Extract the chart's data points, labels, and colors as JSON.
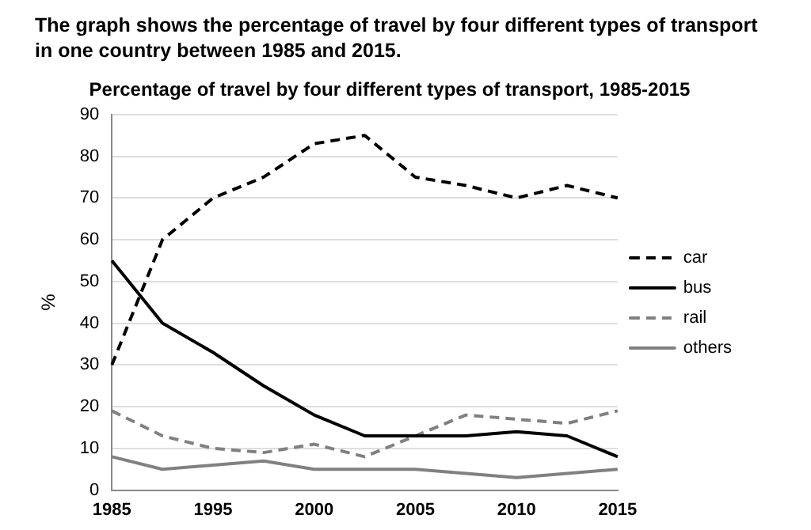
{
  "chart_data": {
    "type": "line",
    "title": "The graph shows the percentage of travel by four different types of transport in one country between 1985 and 2015.",
    "subtitle": "Percentage of travel by four different types of transport, 1985-2015",
    "ylabel": "%",
    "categories": [
      "1985",
      null,
      "1995",
      null,
      "2000",
      null,
      "2005",
      null,
      "2010",
      null,
      "2015"
    ],
    "series": [
      {
        "name": "car",
        "color": "#000000",
        "line_style": "dashed",
        "values": [
          30,
          60,
          70,
          75,
          83,
          85,
          75,
          73,
          70,
          73,
          70
        ]
      },
      {
        "name": "bus",
        "color": "#000000",
        "line_style": "solid",
        "values": [
          55,
          40,
          33,
          25,
          18,
          13,
          13,
          13,
          14,
          13,
          8
        ]
      },
      {
        "name": "rail",
        "color": "#808080",
        "line_style": "dashed",
        "values": [
          19,
          13,
          10,
          9,
          11,
          8,
          13,
          18,
          17,
          16,
          19
        ]
      },
      {
        "name": "others",
        "color": "#808080",
        "line_style": "solid",
        "values": [
          8,
          5,
          6,
          7,
          5,
          5,
          5,
          4,
          3,
          4,
          5
        ]
      }
    ],
    "ylim": [
      0,
      90
    ],
    "yticks": [
      0,
      10,
      20,
      30,
      40,
      50,
      60,
      70,
      80,
      90
    ],
    "grid": "y",
    "legend": "right",
    "marker": "none"
  }
}
